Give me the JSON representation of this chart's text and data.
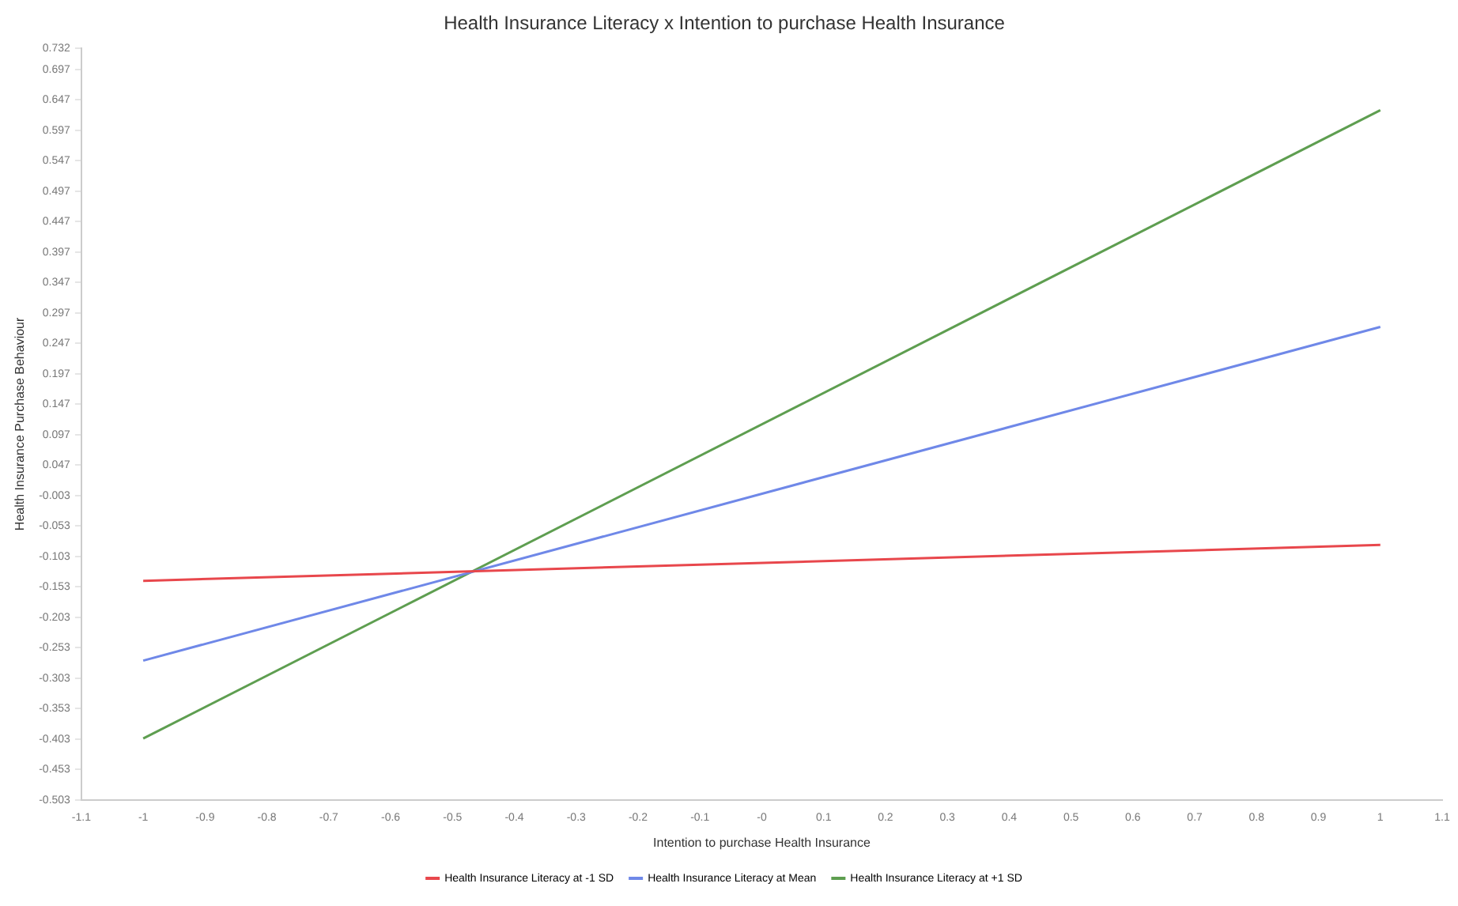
{
  "chart_data": {
    "type": "line",
    "title": "Health Insurance Literacy x Intention to purchase Health Insurance",
    "xlabel": "Intention to purchase Health Insurance",
    "ylabel": "Health Insurance Purchase Behaviour",
    "x": [
      -1,
      1
    ],
    "series": [
      {
        "name": "Health Insurance Literacy at -1 SD",
        "color": "#e8474c",
        "values": [
          -0.143,
          -0.084
        ]
      },
      {
        "name": "Health Insurance Literacy at Mean",
        "color": "#6f88e8",
        "values": [
          -0.274,
          0.274
        ]
      },
      {
        "name": "Health Insurance Literacy at +1 SD",
        "color": "#5e9e50",
        "values": [
          -0.402,
          0.63
        ]
      }
    ],
    "xlim": [
      -1.1,
      1.1
    ],
    "xticks": [
      -1.1,
      -1,
      -0.9,
      -0.8,
      -0.7,
      -0.6,
      -0.5,
      -0.4,
      -0.3,
      -0.2,
      -0.1,
      {
        "value": 0,
        "label": "-0"
      },
      0.1,
      0.2,
      0.3,
      0.4,
      0.5,
      0.6,
      0.7,
      0.8,
      0.9,
      1,
      1.1
    ],
    "ylim": [
      -0.503,
      0.732
    ],
    "yticks": [
      -0.503,
      -0.453,
      -0.403,
      -0.353,
      -0.303,
      -0.253,
      -0.203,
      -0.153,
      -0.103,
      -0.053,
      -0.003,
      0.047,
      0.097,
      0.147,
      0.197,
      0.247,
      0.297,
      0.347,
      0.397,
      0.447,
      0.497,
      0.547,
      0.597,
      0.647,
      0.697,
      0.732
    ],
    "grid": false,
    "legend": "bottom",
    "marker": "none",
    "line_style": "solid"
  }
}
